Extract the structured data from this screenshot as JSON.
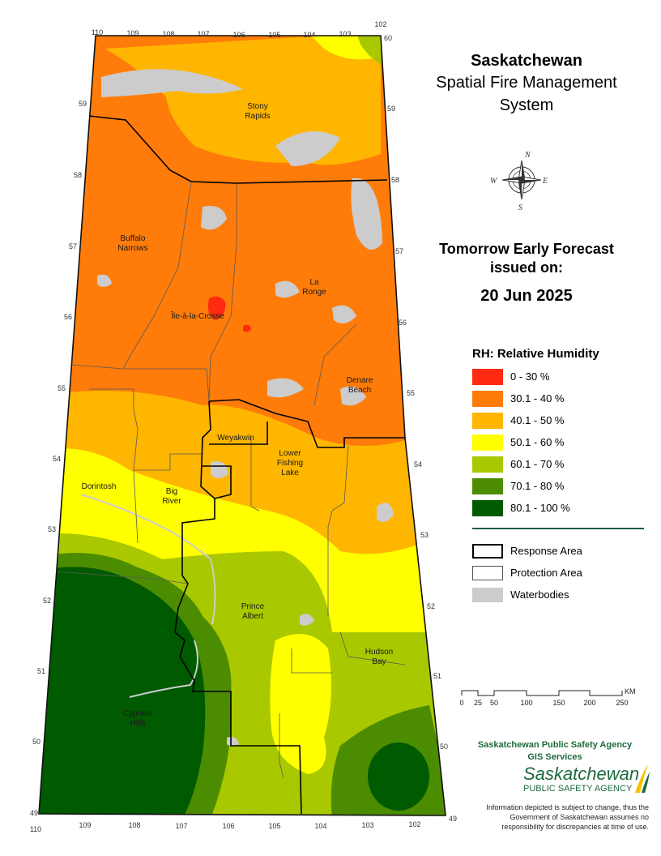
{
  "title": {
    "line1": "Saskatchewan",
    "line2": "Spatial Fire Management",
    "line3": "System"
  },
  "forecast": {
    "line1": "Tomorrow Early Forecast",
    "line2": "issued on:",
    "date": "20 Jun 2025"
  },
  "legend": {
    "title": "RH: Relative Humidity",
    "classes": [
      {
        "label": "0 - 30 %",
        "color": "#ff2a0f"
      },
      {
        "label": "30.1 - 40 %",
        "color": "#ff7c0a"
      },
      {
        "label": "40.1 - 50 %",
        "color": "#ffb600"
      },
      {
        "label": "50.1 - 60 %",
        "color": "#ffff00"
      },
      {
        "label": "60.1 - 70 %",
        "color": "#a9c800"
      },
      {
        "label": "70.1 - 80 %",
        "color": "#4c8c00"
      },
      {
        "label": "80.1 - 100 %",
        "color": "#005a00"
      }
    ]
  },
  "layers": [
    {
      "label": "Response Area"
    },
    {
      "label": "Protection Area"
    },
    {
      "label": "Waterbodies",
      "color": "#cccccc"
    }
  ],
  "scalebar": {
    "unit": "KM",
    "ticks": [
      "0",
      "25",
      "50",
      "100",
      "150",
      "200",
      "250"
    ]
  },
  "agency": {
    "line1": "Saskatchewan Public Safety Agency",
    "line2": "GIS  Services",
    "logo_main": "Saskatchewan",
    "logo_sub": "PUBLIC SAFETY AGENCY"
  },
  "disclaimer": "Information depicted is subject to change, thus the Government of Saskatchewan assumes no responsibility for discrepancies at time of use.",
  "compass": {
    "n": "N",
    "e": "E",
    "s": "S",
    "w": "W"
  },
  "places": {
    "stony_rapids": [
      "Stony",
      "Rapids"
    ],
    "buffalo_narrows": [
      "Buffalo",
      "Narrows"
    ],
    "la_ronge": [
      "La",
      "Ronge"
    ],
    "ile_a_la_crosse": "Île-à-la-Crosse",
    "denare_beach": [
      "Denare",
      "Beach"
    ],
    "weyakwin": "Weyakwin",
    "lower_fishing_lake": [
      "Lower",
      "Fishing",
      "Lake"
    ],
    "dorintosh": "Dorintosh",
    "big_river": [
      "Big",
      "River"
    ],
    "prince_albert": [
      "Prince",
      "Albert"
    ],
    "hudson_bay": [
      "Hudson",
      "Bay"
    ],
    "cypress_hills": [
      "Cypress",
      "Hills"
    ]
  },
  "coords": {
    "top": [
      "110",
      "109",
      "108",
      "107",
      "106",
      "105",
      "104",
      "103",
      "102"
    ],
    "top_right": "60",
    "bottom": [
      "110",
      "109",
      "108",
      "107",
      "106",
      "105",
      "104",
      "103",
      "102"
    ],
    "left": [
      "59",
      "58",
      "57",
      "56",
      "55",
      "54",
      "53",
      "52",
      "51",
      "50",
      "49"
    ],
    "right": [
      "59",
      "58",
      "57",
      "56",
      "55",
      "54",
      "53",
      "52",
      "51",
      "50",
      "49"
    ]
  }
}
